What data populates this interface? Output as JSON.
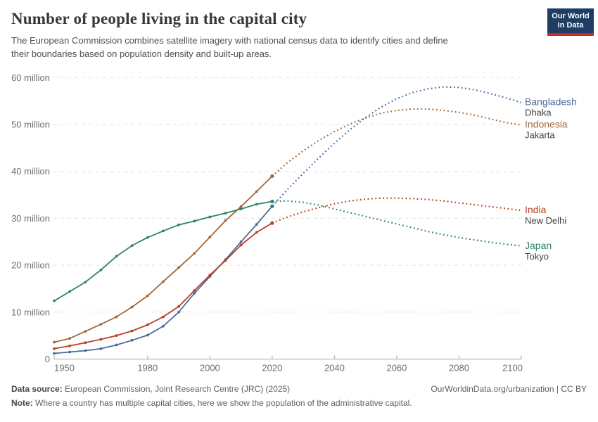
{
  "logo": {
    "line1": "Our World",
    "line2": "in Data",
    "bg_color": "#1D3D63",
    "bar_color": "#CB2A23"
  },
  "chart_data": {
    "type": "line",
    "title": "Number of people living in the capital city",
    "subtitle_lines": [
      "The European Commission combines satellite imagery with national census data to identify cities and define",
      "their boundaries based on population density and built-up areas."
    ],
    "unit": "million people",
    "xlim": [
      1950,
      2100
    ],
    "ylim": [
      0,
      60
    ],
    "grid": "dashed-horizontal",
    "legend_position": "right-end-labels",
    "projection_start": 2020,
    "projection_style": "dotted",
    "years": [
      1950,
      1955,
      1960,
      1965,
      1970,
      1975,
      1980,
      1985,
      1990,
      1995,
      2000,
      2005,
      2010,
      2015,
      2020,
      2025,
      2030,
      2035,
      2040,
      2045,
      2050,
      2055,
      2060,
      2065,
      2070,
      2075,
      2080,
      2085,
      2090,
      2095,
      2100
    ],
    "xticks": [
      {
        "year": 1950,
        "label": "1950"
      },
      {
        "year": 1980,
        "label": "1980"
      },
      {
        "year": 2000,
        "label": "2000"
      },
      {
        "year": 2020,
        "label": "2020"
      },
      {
        "year": 2040,
        "label": "2040"
      },
      {
        "year": 2060,
        "label": "2060"
      },
      {
        "year": 2080,
        "label": "2080"
      },
      {
        "year": 2100,
        "label": "2100"
      }
    ],
    "yticks": [
      {
        "value": 0,
        "label": "0"
      },
      {
        "value": 10,
        "label": "10 million"
      },
      {
        "value": 20,
        "label": "20 million"
      },
      {
        "value": 30,
        "label": "30 million"
      },
      {
        "value": 40,
        "label": "40 million"
      },
      {
        "value": 50,
        "label": "50 million"
      },
      {
        "value": 60,
        "label": "60 million"
      }
    ],
    "series": [
      {
        "name": "Bangladesh",
        "city": "Dhaka",
        "color": "#4C6A9C",
        "values": [
          1.2,
          1.5,
          1.8,
          2.2,
          3.0,
          4.0,
          5.1,
          7.0,
          10.0,
          14.0,
          17.6,
          21.2,
          25.0,
          28.7,
          32.6,
          36.2,
          39.6,
          42.9,
          46.0,
          48.9,
          51.5,
          53.7,
          55.5,
          56.8,
          57.6,
          58.0,
          57.9,
          57.4,
          56.6,
          55.7,
          54.7
        ]
      },
      {
        "name": "Indonesia",
        "city": "Jakarta",
        "color": "#A1693B",
        "values": [
          3.6,
          4.4,
          5.9,
          7.4,
          9.0,
          11.1,
          13.5,
          16.5,
          19.5,
          22.5,
          26.0,
          29.5,
          32.5,
          35.7,
          39.0,
          41.9,
          44.4,
          46.6,
          48.5,
          50.1,
          51.4,
          52.4,
          53.0,
          53.3,
          53.3,
          53.0,
          52.6,
          52.0,
          51.2,
          50.4,
          49.9
        ]
      },
      {
        "name": "India",
        "city": "New Delhi",
        "color": "#BC3D22",
        "values": [
          2.2,
          2.8,
          3.5,
          4.2,
          5.0,
          6.0,
          7.3,
          9.0,
          11.2,
          14.6,
          17.9,
          21.0,
          24.3,
          27.0,
          29.0,
          30.3,
          31.4,
          32.3,
          33.1,
          33.7,
          34.1,
          34.3,
          34.3,
          34.2,
          34.0,
          33.7,
          33.3,
          32.9,
          32.5,
          32.1,
          31.7
        ]
      },
      {
        "name": "Japan",
        "city": "Tokyo",
        "color": "#2C8465",
        "values": [
          12.4,
          14.4,
          16.4,
          19.0,
          21.9,
          24.2,
          25.9,
          27.3,
          28.6,
          29.4,
          30.3,
          31.1,
          32.0,
          33.0,
          33.6,
          33.7,
          33.4,
          32.8,
          32.0,
          31.2,
          30.4,
          29.6,
          28.8,
          28.0,
          27.2,
          26.5,
          25.9,
          25.4,
          24.9,
          24.5,
          24.1
        ]
      }
    ]
  },
  "footer": {
    "source_label": "Data source:",
    "source_text": "European Commission, Joint Research Centre (JRC) (2025)",
    "link_text": "OurWorldinData.org/urbanization | CC BY",
    "note_label": "Note:",
    "note_text": "Where a country has multiple capital cities, here we show the population of the administrative capital."
  }
}
